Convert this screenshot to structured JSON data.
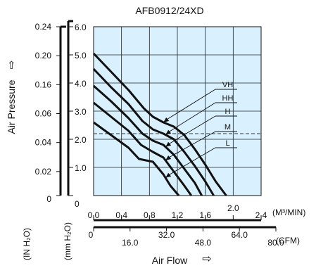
{
  "chart_data": {
    "type": "line",
    "title": "AFB0912/24XD",
    "ylabel": "Air Pressure",
    "ylabel_arrow": "⇨",
    "xlabel": "Air Flow",
    "xlabel_arrow": "⇨",
    "y_axis_mm": {
      "unit": "(mm H₂O)",
      "range": [
        0,
        6.0
      ],
      "ticks": [
        "6.0",
        "5.0",
        "4.0",
        "3.0",
        "2.0",
        "1.0",
        "0"
      ]
    },
    "y_axis_in": {
      "unit": "(IN H₂O)",
      "ticks": [
        "0.24",
        "0.20",
        "0.16",
        "0.06",
        "0.04",
        "0.02",
        "0"
      ]
    },
    "x_axis_m3": {
      "unit": "(M³/MIN)",
      "range": [
        0,
        2.4
      ],
      "ticks": [
        "0.0",
        "0.4",
        "0.8",
        "1.2",
        "1.6",
        "2.0",
        "2.4"
      ]
    },
    "x_axis_cfm": {
      "unit": "(CFM)",
      "ticks": [
        "0",
        "16.0",
        "32.0",
        "48.0",
        "64.0",
        "80.0"
      ]
    },
    "series": [
      {
        "name": "VH",
        "x": [
          0,
          0.25,
          0.5,
          0.72,
          0.85,
          1.0,
          1.15,
          1.3,
          1.45,
          1.6,
          1.75,
          1.9
        ],
        "y": [
          5.05,
          4.4,
          3.75,
          3.1,
          2.8,
          2.6,
          2.45,
          2.15,
          1.65,
          1.1,
          0.5,
          0
        ]
      },
      {
        "name": "HH",
        "x": [
          0,
          0.25,
          0.5,
          0.7,
          0.85,
          1.0,
          1.15,
          1.3,
          1.45,
          1.6,
          1.72
        ],
        "y": [
          4.5,
          3.85,
          3.25,
          2.65,
          2.35,
          2.2,
          2.0,
          1.55,
          1.05,
          0.5,
          0
        ]
      },
      {
        "name": "H",
        "x": [
          0,
          0.25,
          0.5,
          0.7,
          0.85,
          1.0,
          1.15,
          1.3,
          1.45,
          1.55
        ],
        "y": [
          3.9,
          3.35,
          2.75,
          2.2,
          1.95,
          1.8,
          1.45,
          0.95,
          0.45,
          0
        ]
      },
      {
        "name": "M",
        "x": [
          0,
          0.25,
          0.5,
          0.68,
          0.85,
          1.0,
          1.15,
          1.3,
          1.4
        ],
        "y": [
          3.3,
          2.8,
          2.3,
          1.8,
          1.55,
          1.35,
          0.85,
          0.35,
          0
        ]
      },
      {
        "name": "L",
        "x": [
          0,
          0.25,
          0.5,
          0.65,
          0.85,
          1.0,
          1.1,
          1.22
        ],
        "y": [
          2.6,
          2.15,
          1.7,
          1.3,
          1.2,
          0.75,
          0.35,
          0
        ]
      }
    ],
    "reference_line": {
      "orientation": "horizontal",
      "y": 2.2,
      "style": "dashed"
    },
    "reference_line_vertical": {
      "orientation": "vertical",
      "x": 1.6,
      "style": "dashed"
    },
    "grid": true,
    "legend": "right, leader lines to curves"
  }
}
